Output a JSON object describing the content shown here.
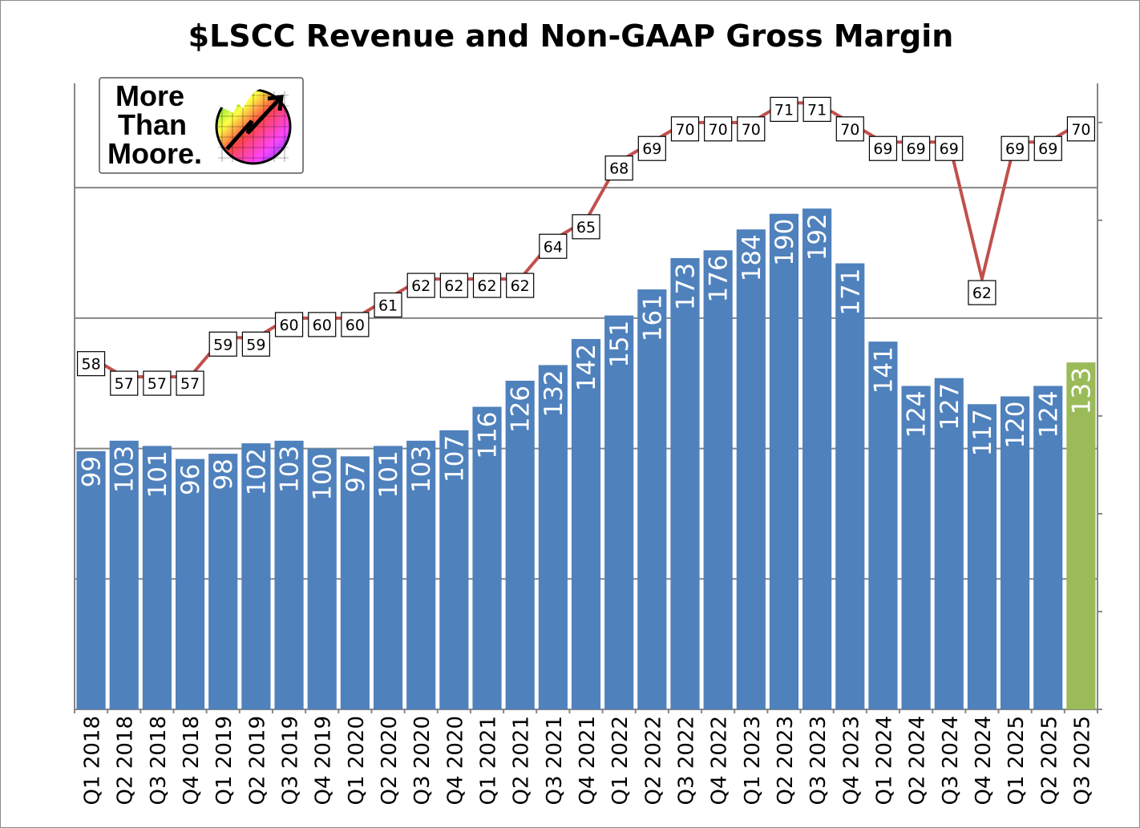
{
  "chart_data": {
    "type": "bar+line",
    "title": "$LSCC Revenue and Non-GAAP Gross Margin",
    "categories": [
      "Q1 2018",
      "Q2 2018",
      "Q3 2018",
      "Q4 2018",
      "Q1 2019",
      "Q2 2019",
      "Q3 2019",
      "Q4 2019",
      "Q1 2020",
      "Q2 2020",
      "Q3 2020",
      "Q4 2020",
      "Q1 2021",
      "Q2 2021",
      "Q3 2021",
      "Q4 2021",
      "Q1 2022",
      "Q2 2022",
      "Q3 2022",
      "Q4 2022",
      "Q1 2023",
      "Q2 2023",
      "Q3 2023",
      "Q4 2023",
      "Q1 2024",
      "Q2 2024",
      "Q3 2024",
      "Q4 2024",
      "Q1 2025",
      "Q2 2025",
      "Q3 2025"
    ],
    "series": [
      {
        "name": "Revenue",
        "type": "bar",
        "axis": "left",
        "color": "#4F81BD",
        "highlight_color": "#9BBB59",
        "highlight_index": 30,
        "values": [
          99,
          103,
          101,
          96,
          98,
          102,
          103,
          100,
          97,
          101,
          103,
          107,
          116,
          126,
          132,
          142,
          151,
          161,
          173,
          176,
          184,
          190,
          192,
          171,
          141,
          124,
          127,
          117,
          120,
          124,
          133
        ]
      },
      {
        "name": "Non-GAAP Gross Margin",
        "type": "line",
        "axis": "right",
        "color": "#C0504D",
        "values": [
          58,
          57,
          57,
          57,
          59,
          59,
          60,
          60,
          60,
          61,
          62,
          62,
          62,
          62,
          64,
          65,
          68,
          69,
          70,
          70,
          70,
          71,
          71,
          70,
          69,
          69,
          69,
          62,
          69,
          69,
          70
        ]
      }
    ],
    "left_axis": {
      "ylim": [
        0,
        240
      ],
      "gridlines": [
        0,
        50,
        100,
        150,
        200
      ],
      "tick_labels_visible": false
    },
    "right_axis": {
      "ylim": [
        40,
        72
      ],
      "ticks": [
        40,
        45,
        50,
        55,
        60,
        65,
        70
      ],
      "tick_labels_visible": false
    },
    "grid": true,
    "legend": "none"
  },
  "logo": {
    "text": "More Than Moore.",
    "lines": [
      "More",
      "Than",
      "Moore."
    ]
  }
}
